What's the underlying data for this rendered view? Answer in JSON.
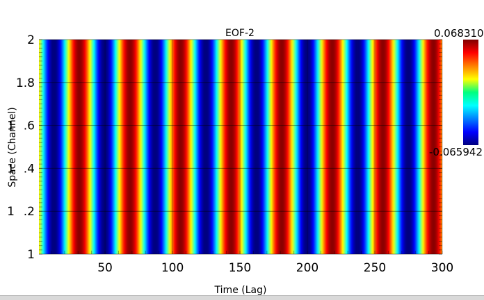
{
  "chart_data": {
    "type": "heatmap",
    "title": "EOF-2",
    "xlabel": "Time (Lag)",
    "ylabel": "Space (Channel)",
    "xlim": [
      1,
      300
    ],
    "ylim": [
      1,
      2
    ],
    "x_ticks": [
      "50",
      "100",
      "150",
      "200",
      "250",
      "300"
    ],
    "y_ticks": [
      "1",
      "1.2",
      "1.4",
      "1.6",
      "1.8",
      "2"
    ],
    "y_tick_labels": [
      ".2",
      ".4",
      ".6",
      "1.8",
      "2"
    ],
    "colorbar": {
      "max_label": "0.068310",
      "min_label": "-0.065942",
      "max": 0.06831,
      "min": -0.065942,
      "colormap": "jet"
    },
    "pattern": {
      "description_values": "value varies along time only, constant across channel",
      "period": 37.5,
      "amplitude": 0.067,
      "peak_times": [
        31,
        68,
        106,
        143,
        181,
        218,
        256,
        293
      ],
      "trough_times": [
        12,
        49,
        87,
        124,
        162,
        199,
        237,
        274
      ]
    },
    "grid": true
  }
}
